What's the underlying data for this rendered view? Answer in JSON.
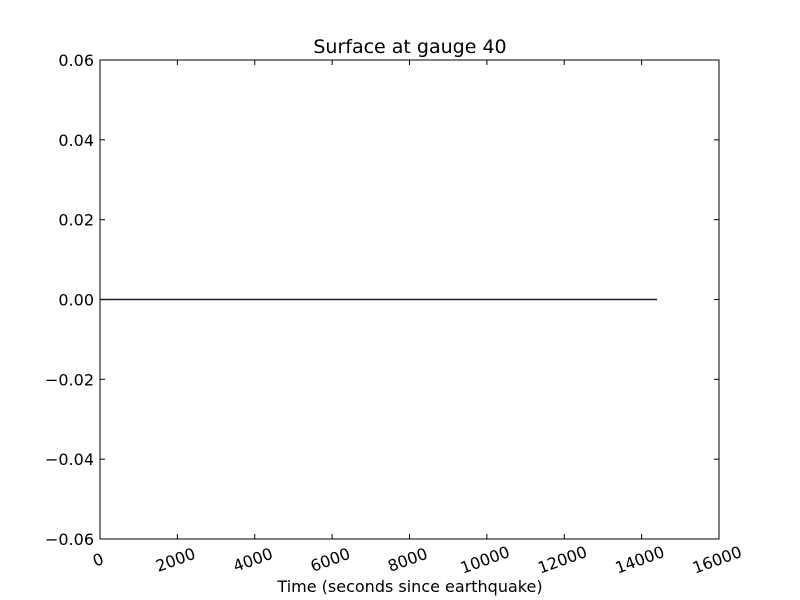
{
  "chart_data": {
    "type": "line",
    "title": "Surface at gauge 40",
    "xlabel": "Time (seconds since earthquake)",
    "ylabel": "",
    "xlim": [
      0,
      16000
    ],
    "ylim": [
      -0.06,
      0.06
    ],
    "x_ticks": [
      0,
      2000,
      4000,
      6000,
      8000,
      10000,
      12000,
      14000,
      16000
    ],
    "x_tick_labels": [
      "0",
      "2000",
      "4000",
      "6000",
      "8000",
      "10000",
      "12000",
      "14000",
      "16000"
    ],
    "y_ticks": [
      -0.06,
      -0.04,
      -0.02,
      0.0,
      0.02,
      0.04,
      0.06
    ],
    "y_tick_labels": [
      "−0.06",
      "−0.04",
      "−0.02",
      "0.00",
      "0.02",
      "0.04",
      "0.06"
    ],
    "grid": false,
    "legend": "none",
    "colors": {
      "series_line": "#1a1a4e",
      "axes": "#000000",
      "background": "#ffffff"
    },
    "series": [
      {
        "x": [
          0,
          14400
        ],
        "y": [
          0.0,
          0.0
        ]
      }
    ]
  }
}
